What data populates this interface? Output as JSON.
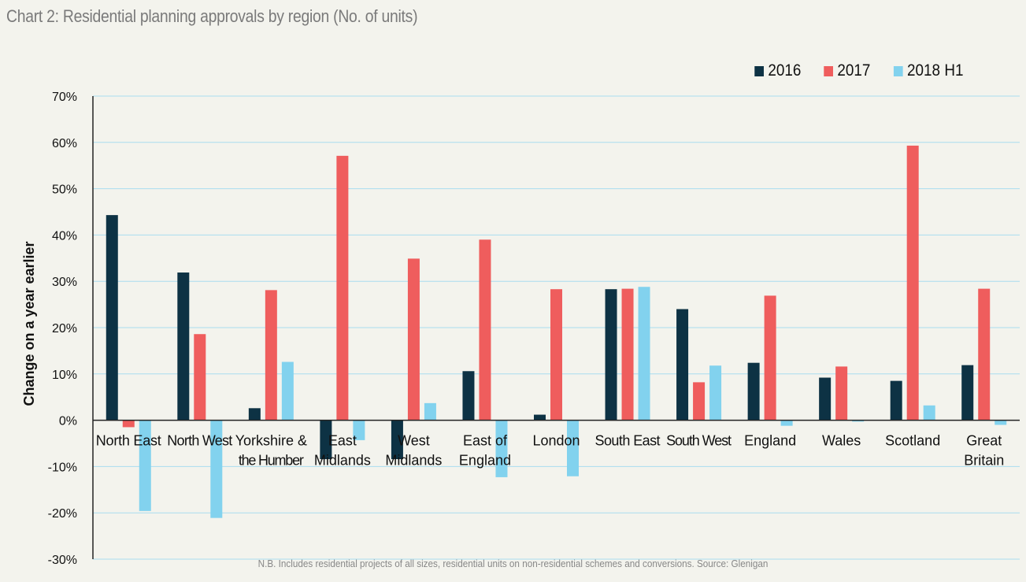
{
  "title": "Chart 2: Residential planning approvals by region (No. of units)",
  "footnote": "N.B. Includes residential projects of all sizes, residential units on non-residential schemes  and conversions.  Source: Glenigan",
  "chart_data": {
    "type": "bar",
    "title": "Chart 2: Residential planning approvals by region (No. of units)",
    "ylabel": "Change on a year earlier",
    "xlabel": "",
    "ylim": [
      -30,
      70
    ],
    "yticks": [
      -30,
      -20,
      -10,
      0,
      10,
      20,
      30,
      40,
      50,
      60,
      70
    ],
    "ytick_labels": [
      "-30%",
      "-20%",
      "-10%",
      "0%",
      "10%",
      "20%",
      "30%",
      "40%",
      "50%",
      "60%",
      "70%"
    ],
    "grid": "horizontal",
    "legend_position": "top-right",
    "categories": [
      [
        "North East"
      ],
      [
        "North West"
      ],
      [
        "Yorkshire &",
        "the Humber"
      ],
      [
        "East",
        "Midlands"
      ],
      [
        "West",
        "Midlands"
      ],
      [
        "East of",
        "England"
      ],
      [
        "London"
      ],
      [
        "South East"
      ],
      [
        "South West"
      ],
      [
        "England"
      ],
      [
        "Wales"
      ],
      [
        "Scotland"
      ],
      [
        "Great",
        "Britain"
      ]
    ],
    "series": [
      {
        "name": "2016",
        "color": "#0d3244",
        "values": [
          44.3,
          31.9,
          2.6,
          -8.4,
          -8.4,
          10.6,
          1.2,
          28.3,
          24.0,
          12.4,
          9.2,
          8.5,
          11.9
        ]
      },
      {
        "name": "2017",
        "color": "#ef5d5d",
        "values": [
          -1.5,
          18.6,
          28.1,
          57.1,
          34.9,
          39.0,
          28.3,
          28.4,
          8.2,
          26.9,
          11.6,
          59.3,
          28.4
        ]
      },
      {
        "name": "2018 H1",
        "color": "#82d2ee",
        "values": [
          -19.6,
          -21.1,
          12.6,
          -4.3,
          3.7,
          -12.3,
          -12.1,
          28.8,
          11.8,
          -1.2,
          -0.3,
          3.2,
          -1.0
        ]
      }
    ]
  }
}
